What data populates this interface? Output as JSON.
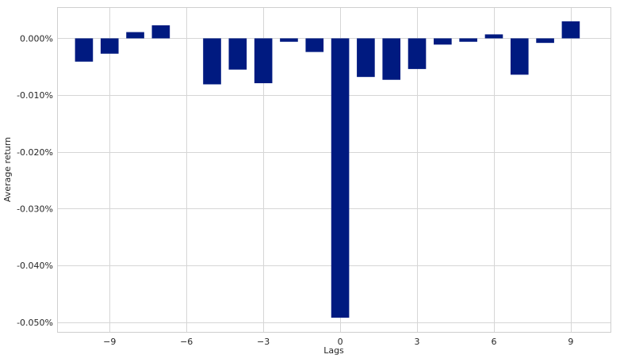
{
  "chart_data": {
    "type": "bar",
    "title": "",
    "xlabel": "Lags",
    "ylabel": "Average return",
    "x": [
      -10,
      -9,
      -8,
      -7,
      -6,
      -5,
      -4,
      -3,
      -2,
      -1,
      0,
      1,
      2,
      3,
      4,
      5,
      6,
      7,
      8,
      9
    ],
    "values": [
      -0.0041,
      -0.0027,
      0.0011,
      0.0023,
      0.0,
      -0.0081,
      -0.0055,
      -0.0079,
      -0.0006,
      -0.0024,
      -0.0492,
      -0.0068,
      -0.0073,
      -0.0054,
      -0.0011,
      -0.0006,
      0.0007,
      -0.0064,
      -0.0008,
      0.003
    ],
    "unit": "%",
    "xlim": [
      -11.05,
      10.55
    ],
    "ylim": [
      -0.0517,
      0.0055
    ],
    "x_ticks": [
      -9,
      -6,
      -3,
      0,
      3,
      6,
      9
    ],
    "x_tick_labels": [
      "−9",
      "−6",
      "−3",
      "0",
      "3",
      "6",
      "9"
    ],
    "y_ticks": [
      0.0,
      -0.01,
      -0.02,
      -0.03,
      -0.04,
      -0.05
    ],
    "y_tick_labels": [
      "0.000%",
      "-0.010%",
      "-0.020%",
      "-0.030%",
      "-0.040%",
      "-0.050%"
    ],
    "grid": true,
    "bar_color": "#001a80",
    "bar_width": 0.7
  }
}
